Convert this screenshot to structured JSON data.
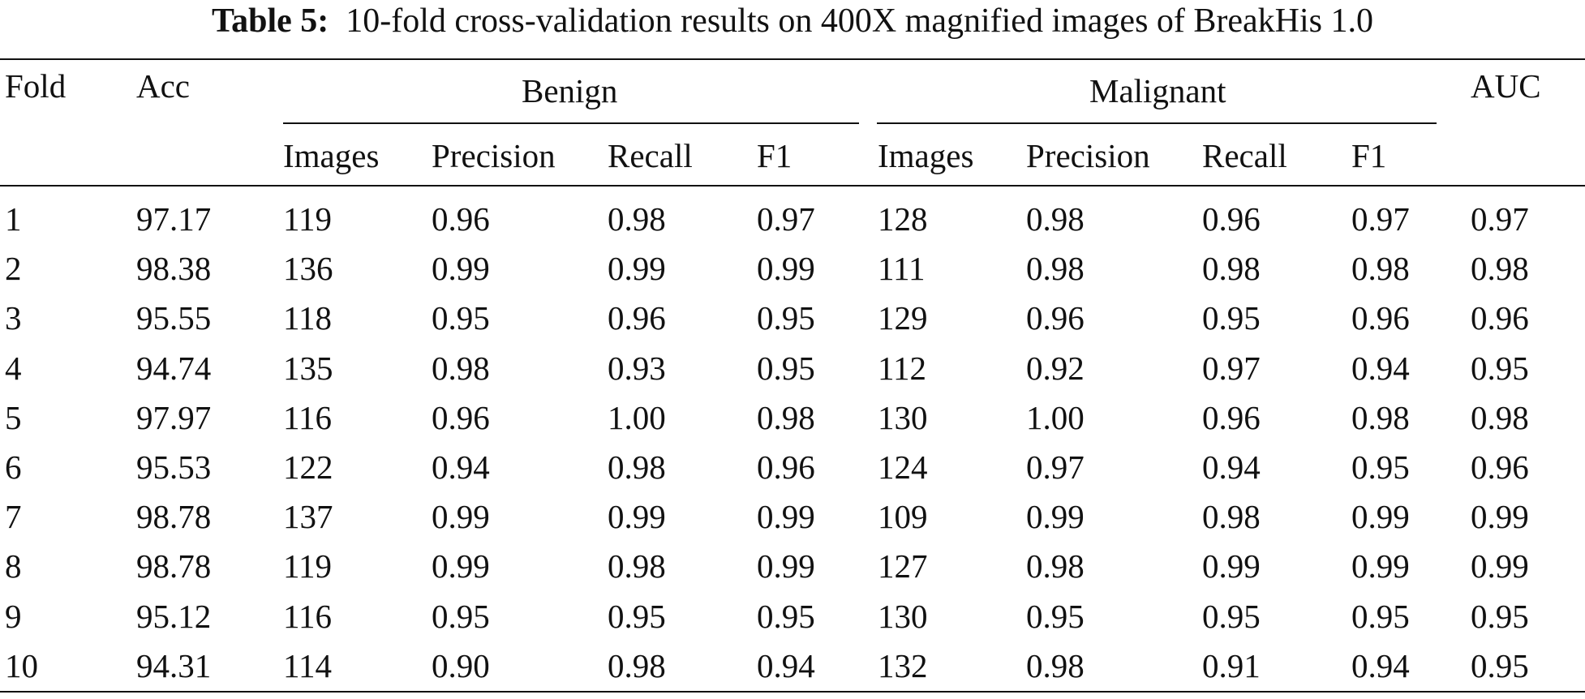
{
  "caption": {
    "label": "Table 5:",
    "text": "10-fold cross-validation results on 400X magnified images of BreakHis 1.0"
  },
  "header": {
    "fold": "Fold",
    "acc": "Acc",
    "benign": "Benign",
    "malignant": "Malignant",
    "auc": "AUC",
    "sub": [
      "Images",
      "Precision",
      "Recall",
      "F1",
      "Images",
      "Precision",
      "Recall",
      "F1"
    ]
  },
  "rows": [
    [
      "1",
      "97.17",
      "119",
      "0.96",
      "0.98",
      "0.97",
      "128",
      "0.98",
      "0.96",
      "0.97",
      "0.97"
    ],
    [
      "2",
      "98.38",
      "136",
      "0.99",
      "0.99",
      "0.99",
      "111",
      "0.98",
      "0.98",
      "0.98",
      "0.98"
    ],
    [
      "3",
      "95.55",
      "118",
      "0.95",
      "0.96",
      "0.95",
      "129",
      "0.96",
      "0.95",
      "0.96",
      "0.96"
    ],
    [
      "4",
      "94.74",
      "135",
      "0.98",
      "0.93",
      "0.95",
      "112",
      "0.92",
      "0.97",
      "0.94",
      "0.95"
    ],
    [
      "5",
      "97.97",
      "116",
      "0.96",
      "1.00",
      "0.98",
      "130",
      "1.00",
      "0.96",
      "0.98",
      "0.98"
    ],
    [
      "6",
      "95.53",
      "122",
      "0.94",
      "0.98",
      "0.96",
      "124",
      "0.97",
      "0.94",
      "0.95",
      "0.96"
    ],
    [
      "7",
      "98.78",
      "137",
      "0.99",
      "0.99",
      "0.99",
      "109",
      "0.99",
      "0.98",
      "0.99",
      "0.99"
    ],
    [
      "8",
      "98.78",
      "119",
      "0.99",
      "0.98",
      "0.99",
      "127",
      "0.98",
      "0.99",
      "0.99",
      "0.99"
    ],
    [
      "9",
      "95.12",
      "116",
      "0.95",
      "0.95",
      "0.95",
      "130",
      "0.95",
      "0.95",
      "0.95",
      "0.95"
    ],
    [
      "10",
      "94.31",
      "114",
      "0.90",
      "0.98",
      "0.94",
      "132",
      "0.98",
      "0.91",
      "0.94",
      "0.95"
    ]
  ]
}
